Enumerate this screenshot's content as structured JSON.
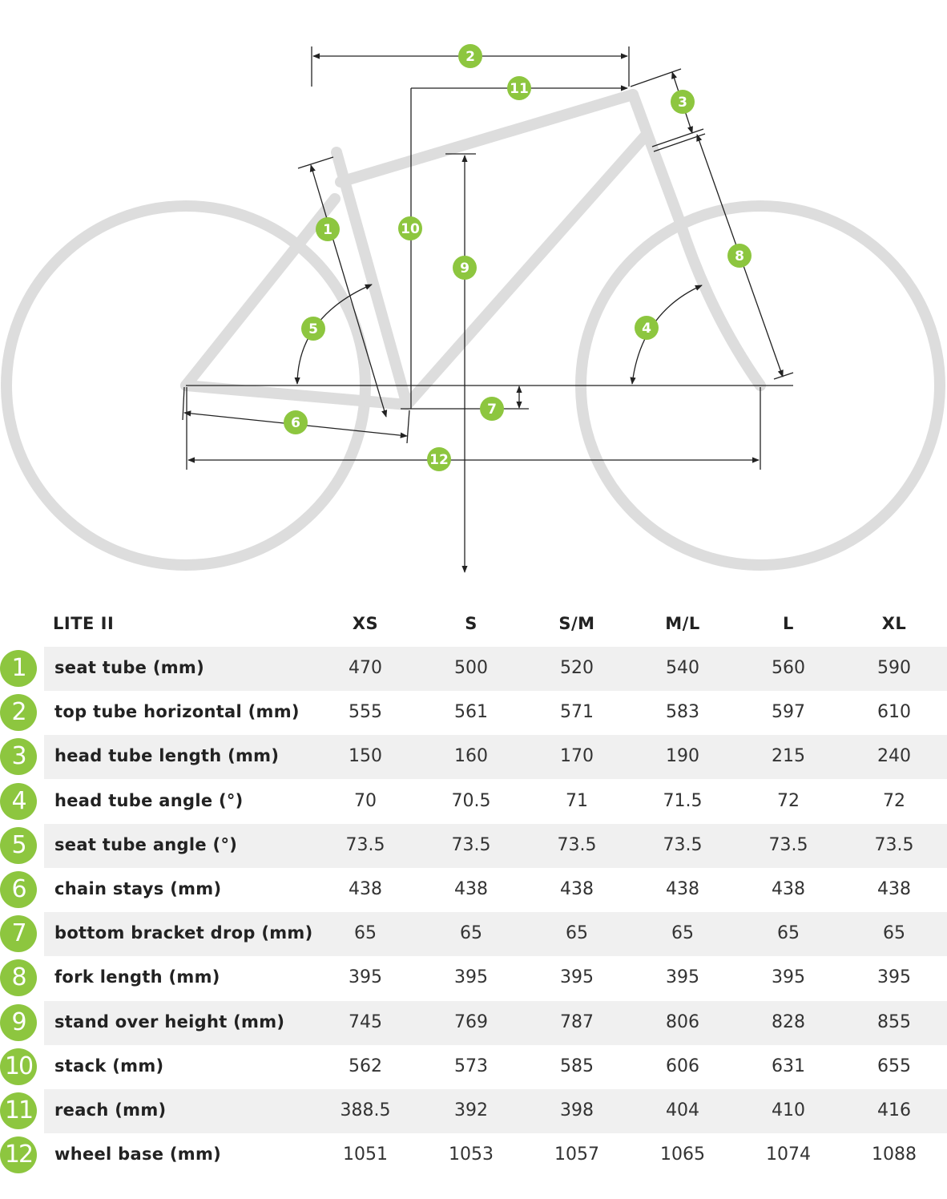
{
  "diagram": {
    "badges": [
      "1",
      "2",
      "3",
      "4",
      "5",
      "6",
      "7",
      "8",
      "9",
      "10",
      "11",
      "12"
    ]
  },
  "table": {
    "model": "LITE II",
    "sizes": [
      "XS",
      "S",
      "S/M",
      "M/L",
      "L",
      "XL"
    ],
    "rows": [
      {
        "num": "1",
        "label": "seat tube (mm)",
        "values": [
          "470",
          "500",
          "520",
          "540",
          "560",
          "590"
        ]
      },
      {
        "num": "2",
        "label": "top tube horizontal (mm)",
        "values": [
          "555",
          "561",
          "571",
          "583",
          "597",
          "610"
        ]
      },
      {
        "num": "3",
        "label": "head tube length (mm)",
        "values": [
          "150",
          "160",
          "170",
          "190",
          "215",
          "240"
        ]
      },
      {
        "num": "4",
        "label": "head tube angle (°)",
        "values": [
          "70",
          "70.5",
          "71",
          "71.5",
          "72",
          "72"
        ]
      },
      {
        "num": "5",
        "label": "seat tube angle (°)",
        "values": [
          "73.5",
          "73.5",
          "73.5",
          "73.5",
          "73.5",
          "73.5"
        ]
      },
      {
        "num": "6",
        "label": "chain stays (mm)",
        "values": [
          "438",
          "438",
          "438",
          "438",
          "438",
          "438"
        ]
      },
      {
        "num": "7",
        "label": "bottom bracket drop (mm)",
        "values": [
          "65",
          "65",
          "65",
          "65",
          "65",
          "65"
        ]
      },
      {
        "num": "8",
        "label": "fork length (mm)",
        "values": [
          "395",
          "395",
          "395",
          "395",
          "395",
          "395"
        ]
      },
      {
        "num": "9",
        "label": "stand over height (mm)",
        "values": [
          "745",
          "769",
          "787",
          "806",
          "828",
          "855"
        ]
      },
      {
        "num": "10",
        "label": "stack (mm)",
        "values": [
          "562",
          "573",
          "585",
          "606",
          "631",
          "655"
        ]
      },
      {
        "num": "11",
        "label": "reach (mm)",
        "values": [
          "388.5",
          "392",
          "398",
          "404",
          "410",
          "416"
        ]
      },
      {
        "num": "12",
        "label": "wheel base (mm)",
        "values": [
          "1051",
          "1053",
          "1057",
          "1065",
          "1074",
          "1088"
        ]
      }
    ]
  },
  "colors": {
    "accent": "#8dc63f",
    "frame": "#dddddd",
    "row_shade": "#f0f0f0"
  }
}
